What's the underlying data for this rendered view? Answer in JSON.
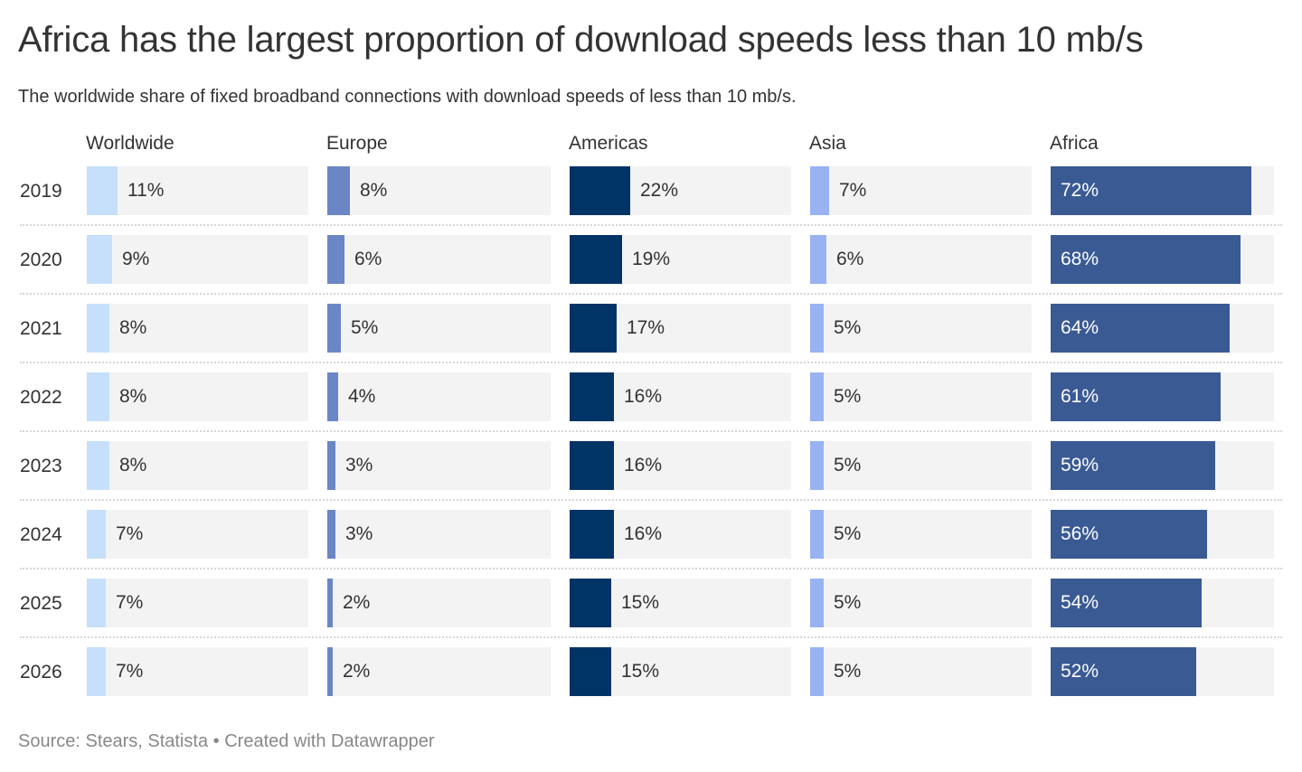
{
  "header": {
    "title": "Africa has the largest proportion of download speeds less than 10 mb/s",
    "subtitle": "The worldwide share of fixed broadband connections with download speeds of less than 10 mb/s."
  },
  "footer": {
    "source": "Source: Stears, Statista • Created with Datawrapper"
  },
  "chart_data": {
    "type": "bar",
    "layout": "small-multiples",
    "title": "Africa has the largest proportion of download speeds less than 10 mb/s",
    "subtitle": "The worldwide share of fixed broadband connections with download speeds of less than 10 mb/s.",
    "xlabel": "",
    "ylabel": "",
    "unit": "%",
    "xlim": [
      0,
      80
    ],
    "grid": false,
    "legend": "none",
    "categories": [
      "2019",
      "2020",
      "2021",
      "2022",
      "2023",
      "2024",
      "2025",
      "2026"
    ],
    "series": [
      {
        "name": "Worldwide",
        "color": "#c6e0fb",
        "label_color": "#333333",
        "label_inside": false,
        "values": [
          11,
          9,
          8,
          8,
          8,
          7,
          7,
          7
        ]
      },
      {
        "name": "Europe",
        "color": "#6b86c4",
        "label_color": "#333333",
        "label_inside": false,
        "values": [
          8,
          6,
          5,
          4,
          3,
          3,
          2,
          2
        ]
      },
      {
        "name": "Americas",
        "color": "#003366",
        "label_color": "#333333",
        "label_inside": false,
        "values": [
          22,
          19,
          17,
          16,
          16,
          16,
          15,
          15
        ]
      },
      {
        "name": "Asia",
        "color": "#98b2f2",
        "label_color": "#333333",
        "label_inside": false,
        "values": [
          7,
          6,
          5,
          5,
          5,
          5,
          5,
          5
        ]
      },
      {
        "name": "Africa",
        "color": "#3a5a94",
        "label_color": "#ffffff",
        "label_inside": true,
        "values": [
          72,
          68,
          64,
          61,
          59,
          56,
          54,
          52
        ]
      }
    ],
    "track_color": "#f3f3f3"
  }
}
